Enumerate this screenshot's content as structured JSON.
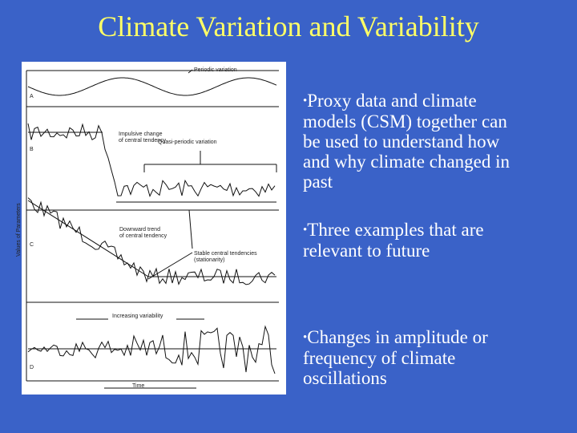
{
  "slide": {
    "title": "Climate Variation and Variability",
    "figure": {
      "panel_labels": [
        "A",
        "B",
        "C",
        "D"
      ],
      "y_axis_label": "Values of Parameters",
      "annotations": [
        [
          "Periodic variation"
        ],
        [
          "Impulsive change",
          "of central tendency"
        ],
        [
          "Quasi-periodic variation"
        ],
        [
          "Downward trend",
          "of central tendency"
        ],
        [
          "Stable central tendencies",
          "(stationarity)"
        ],
        [
          "Increasing variability"
        ],
        [
          "Time"
        ]
      ]
    },
    "bullets": [
      [
        "Proxy data and climate",
        "models (CSM) together can",
        "be used to understand how",
        "and why climate changed in",
        "past"
      ],
      [
        "Three examples that are",
        "relevant to future"
      ],
      [
        "Changes in amplitude or",
        "frequency of climate",
        "oscillations"
      ]
    ]
  }
}
